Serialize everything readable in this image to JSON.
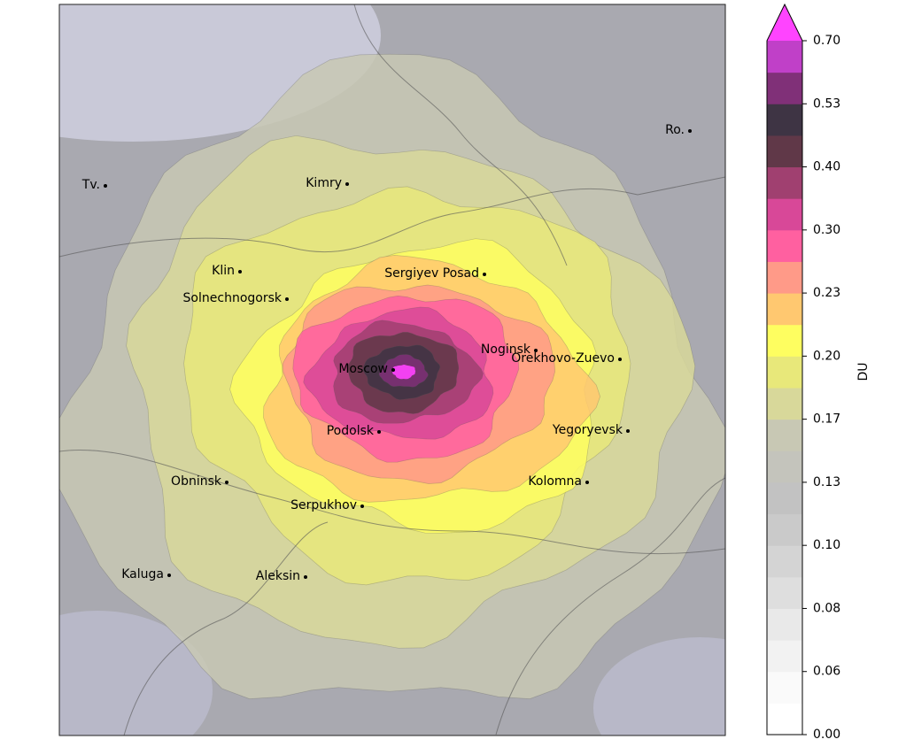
{
  "map": {
    "cities": [
      "Tv.",
      "Kimry",
      "Ro.",
      "Klin",
      "Sergiyev Posad",
      "Solnechnogorsk",
      "Noginsk",
      "Orekhovo-Zuevo",
      "Moscow",
      "Podolsk",
      "Yegoryevsk",
      "Obninsk",
      "Kolomna",
      "Serpukhov",
      "Kaluga",
      "Aleksin"
    ]
  },
  "colorbar": {
    "label": "DU",
    "ticks": [
      "0.00",
      "0.06",
      "0.08",
      "0.10",
      "0.13",
      "0.17",
      "0.20",
      "0.23",
      "0.30",
      "0.40",
      "0.53",
      "0.70"
    ],
    "colors": [
      "#ffffff",
      "#fafafa",
      "#f2f2f2",
      "#e9e9e9",
      "#dedede",
      "#d4d4d4",
      "#cacaca",
      "#c2c2c2",
      "#c4c4bc",
      "#c8c8b4",
      "#d8d89a",
      "#e8e87a",
      "#fefe60",
      "#ffc870",
      "#ff9a88",
      "#ff60a0",
      "#d84898",
      "#a04070",
      "#603848",
      "#3e3444",
      "#803078",
      "#c040c8"
    ],
    "extend_color": "#ff44ff"
  }
}
